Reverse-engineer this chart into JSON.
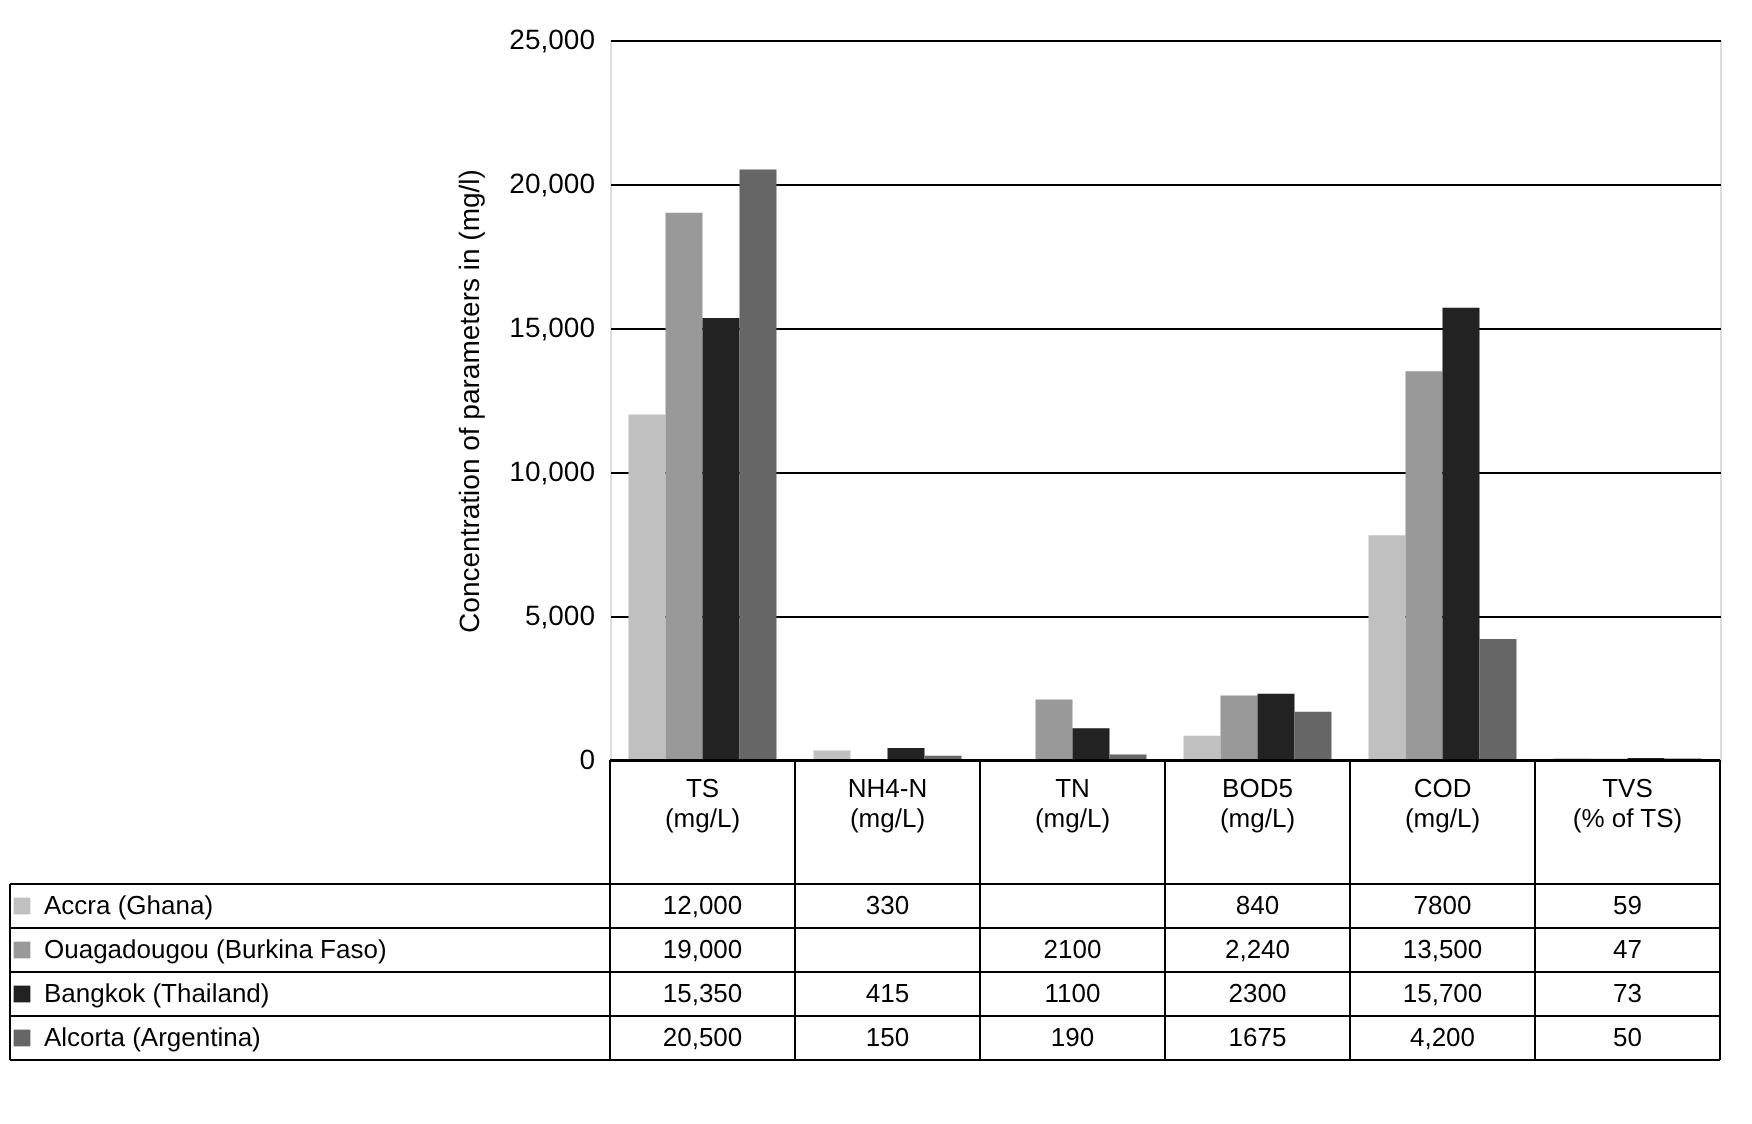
{
  "chart_data": {
    "type": "bar",
    "ylabel": "Concentration of parameters in (mg/l)",
    "categories": [
      "TS\n(mg/L)",
      "NH4-N\n(mg/L)",
      "TN\n(mg/L)",
      "BOD5\n(mg/L)",
      "COD\n(mg/L)",
      "TVS\n(% of TS)"
    ],
    "series": [
      {
        "name": "Accra (Ghana)",
        "color": "#c0c0c0",
        "values": [
          12000,
          330,
          null,
          840,
          7800,
          59
        ],
        "value_labels": [
          "12,000",
          "330",
          null,
          "840",
          "7800",
          "59"
        ]
      },
      {
        "name": "Ouagadougou (Burkina Faso)",
        "color": "#999999",
        "values": [
          19000,
          null,
          2100,
          2240,
          13500,
          47
        ],
        "value_labels": [
          "19,000",
          null,
          "2100",
          "2,240",
          "13,500",
          "47"
        ]
      },
      {
        "name": "Bangkok (Thailand)",
        "color": "#222222",
        "values": [
          15350,
          415,
          1100,
          2300,
          15700,
          73
        ],
        "value_labels": [
          "15,350",
          "415",
          "1100",
          "2300",
          "15,700",
          "73"
        ]
      },
      {
        "name": "Alcorta (Argentina)",
        "color": "#666666",
        "values": [
          20500,
          150,
          190,
          1675,
          4200,
          50
        ],
        "value_labels": [
          "20,500",
          "150",
          "190",
          "1675",
          "4,200",
          "50"
        ]
      }
    ],
    "ylim": [
      0,
      25000
    ],
    "yticks": [
      0,
      {
        "value": 5000,
        "label": "5,000"
      },
      {
        "value": 10000,
        "label": "10,000"
      },
      {
        "value": 15000,
        "label": "15,000"
      },
      {
        "value": 20000,
        "label": "20,000"
      },
      {
        "value": 25000,
        "label": "25,000"
      }
    ],
    "grid": "y",
    "legend": "bottom"
  }
}
